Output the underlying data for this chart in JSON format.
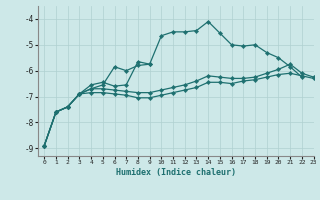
{
  "xlabel": "Humidex (Indice chaleur)",
  "ylabel": "",
  "bg_color": "#cde8e8",
  "line_color": "#1e7070",
  "grid_color": "#b0d0d0",
  "xlim": [
    -0.5,
    23
  ],
  "ylim": [
    -9.3,
    -3.5
  ],
  "yticks": [
    -9,
    -8,
    -7,
    -6,
    -5,
    -4
  ],
  "xticks": [
    0,
    1,
    2,
    3,
    4,
    5,
    6,
    7,
    8,
    9,
    10,
    11,
    12,
    13,
    14,
    15,
    16,
    17,
    18,
    19,
    20,
    21,
    22,
    23
  ],
  "series": [
    {
      "x": [
        0,
        1,
        2,
        3,
        4,
        5,
        6,
        7,
        8,
        9,
        10,
        11,
        12,
        13,
        14,
        15,
        16,
        17,
        18,
        19,
        20,
        21,
        22
      ],
      "y": [
        -8.9,
        -7.6,
        -7.4,
        -6.9,
        -6.55,
        -6.45,
        -6.6,
        -6.55,
        -5.65,
        -5.75,
        -4.65,
        -4.5,
        -4.5,
        -4.45,
        -4.1,
        -4.55,
        -5.0,
        -5.05,
        -5.0,
        -5.3,
        -5.5,
        -5.85,
        -6.25
      ],
      "lw": 0.9
    },
    {
      "x": [
        0,
        1,
        2,
        3,
        4,
        5,
        6,
        7,
        8,
        9
      ],
      "y": [
        -8.9,
        -7.6,
        -7.4,
        -6.9,
        -6.7,
        -6.55,
        -5.85,
        -6.0,
        -5.8,
        -5.75
      ],
      "lw": 0.9
    },
    {
      "x": [
        0,
        1,
        2,
        3,
        4,
        5,
        6,
        7,
        8,
        9,
        10,
        11,
        12,
        13,
        14,
        15,
        16,
        17,
        18,
        19,
        20,
        21,
        22,
        23
      ],
      "y": [
        -8.9,
        -7.6,
        -7.4,
        -6.9,
        -6.7,
        -6.7,
        -6.75,
        -6.8,
        -6.85,
        -6.85,
        -6.75,
        -6.65,
        -6.55,
        -6.4,
        -6.2,
        -6.25,
        -6.3,
        -6.3,
        -6.25,
        -6.1,
        -5.95,
        -5.75,
        -6.1,
        -6.25
      ],
      "lw": 0.9
    },
    {
      "x": [
        0,
        1,
        2,
        3,
        4,
        5,
        6,
        7,
        8,
        9,
        10,
        11,
        12,
        13,
        14,
        15,
        16,
        17,
        18,
        19,
        20,
        21,
        22,
        23
      ],
      "y": [
        -8.9,
        -7.6,
        -7.4,
        -6.9,
        -6.85,
        -6.85,
        -6.9,
        -6.95,
        -7.05,
        -7.05,
        -6.95,
        -6.85,
        -6.75,
        -6.65,
        -6.45,
        -6.45,
        -6.5,
        -6.4,
        -6.35,
        -6.25,
        -6.15,
        -6.1,
        -6.2,
        -6.3
      ],
      "lw": 0.9
    }
  ]
}
